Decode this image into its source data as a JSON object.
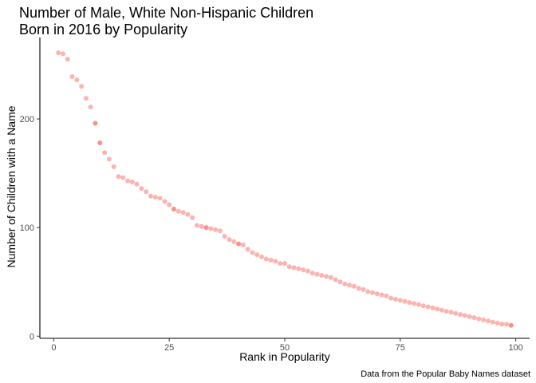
{
  "chart_data": {
    "type": "scatter",
    "title_line1": "Number of Male, White Non-Hispanic Children",
    "title_line2": "Born in 2016 by Popularity",
    "xlabel": "Rank in Popularity",
    "ylabel": "Number of Children with a Name",
    "caption": "Data from the Popular Baby Names dataset",
    "xlim": [
      -3,
      103
    ],
    "ylim": [
      -2,
      275
    ],
    "x_ticks": [
      0,
      25,
      50,
      75,
      100
    ],
    "y_ticks": [
      0,
      100,
      200
    ],
    "x_tick_labels": [
      "0",
      "25",
      "50",
      "75",
      "100"
    ],
    "y_tick_labels": [
      "0",
      "100",
      "200"
    ],
    "point_color": "#F8766D",
    "point_opacity": 0.55,
    "grid": false,
    "points": [
      [
        1,
        261
      ],
      [
        2,
        260
      ],
      [
        3,
        255
      ],
      [
        4,
        239
      ],
      [
        5,
        236
      ],
      [
        6,
        230
      ],
      [
        7,
        219
      ],
      [
        8,
        211
      ],
      [
        9,
        196
      ],
      [
        9,
        196
      ],
      [
        10,
        178
      ],
      [
        10,
        178
      ],
      [
        11,
        169
      ],
      [
        12,
        163
      ],
      [
        13,
        156
      ],
      [
        14,
        147
      ],
      [
        15,
        146
      ],
      [
        16,
        143
      ],
      [
        17,
        142
      ],
      [
        18,
        140
      ],
      [
        19,
        136
      ],
      [
        20,
        133
      ],
      [
        21,
        129
      ],
      [
        22,
        128
      ],
      [
        23,
        127
      ],
      [
        24,
        124
      ],
      [
        25,
        121
      ],
      [
        26,
        117
      ],
      [
        26,
        117
      ],
      [
        27,
        115
      ],
      [
        28,
        114
      ],
      [
        29,
        112
      ],
      [
        30,
        109
      ],
      [
        31,
        102
      ],
      [
        32,
        101
      ],
      [
        33,
        100
      ],
      [
        33,
        100
      ],
      [
        34,
        99
      ],
      [
        35,
        98
      ],
      [
        36,
        97
      ],
      [
        37,
        92
      ],
      [
        38,
        89
      ],
      [
        39,
        87
      ],
      [
        40,
        85
      ],
      [
        40,
        85
      ],
      [
        41,
        84
      ],
      [
        42,
        80
      ],
      [
        43,
        77
      ],
      [
        44,
        75
      ],
      [
        45,
        73
      ],
      [
        46,
        71
      ],
      [
        47,
        70
      ],
      [
        48,
        69
      ],
      [
        49,
        67
      ],
      [
        50,
        67
      ],
      [
        51,
        64
      ],
      [
        52,
        63
      ],
      [
        53,
        62
      ],
      [
        54,
        61
      ],
      [
        55,
        60
      ],
      [
        56,
        58
      ],
      [
        57,
        57
      ],
      [
        58,
        56
      ],
      [
        59,
        55
      ],
      [
        60,
        54
      ],
      [
        61,
        52
      ],
      [
        62,
        50
      ],
      [
        63,
        48
      ],
      [
        64,
        47
      ],
      [
        65,
        46
      ],
      [
        66,
        44
      ],
      [
        67,
        43
      ],
      [
        68,
        41
      ],
      [
        69,
        40
      ],
      [
        70,
        39
      ],
      [
        71,
        38
      ],
      [
        72,
        37
      ],
      [
        73,
        35
      ],
      [
        74,
        34
      ],
      [
        75,
        33
      ],
      [
        76,
        32
      ],
      [
        77,
        31
      ],
      [
        78,
        30
      ],
      [
        79,
        29
      ],
      [
        80,
        28
      ],
      [
        81,
        27
      ],
      [
        82,
        26
      ],
      [
        83,
        25
      ],
      [
        84,
        24
      ],
      [
        85,
        23
      ],
      [
        86,
        22
      ],
      [
        87,
        21
      ],
      [
        88,
        20
      ],
      [
        89,
        19
      ],
      [
        90,
        18
      ],
      [
        91,
        17
      ],
      [
        92,
        16
      ],
      [
        93,
        15
      ],
      [
        94,
        14
      ],
      [
        95,
        13
      ],
      [
        96,
        12
      ],
      [
        97,
        11
      ],
      [
        98,
        11
      ],
      [
        99,
        10
      ],
      [
        99,
        10
      ]
    ]
  }
}
